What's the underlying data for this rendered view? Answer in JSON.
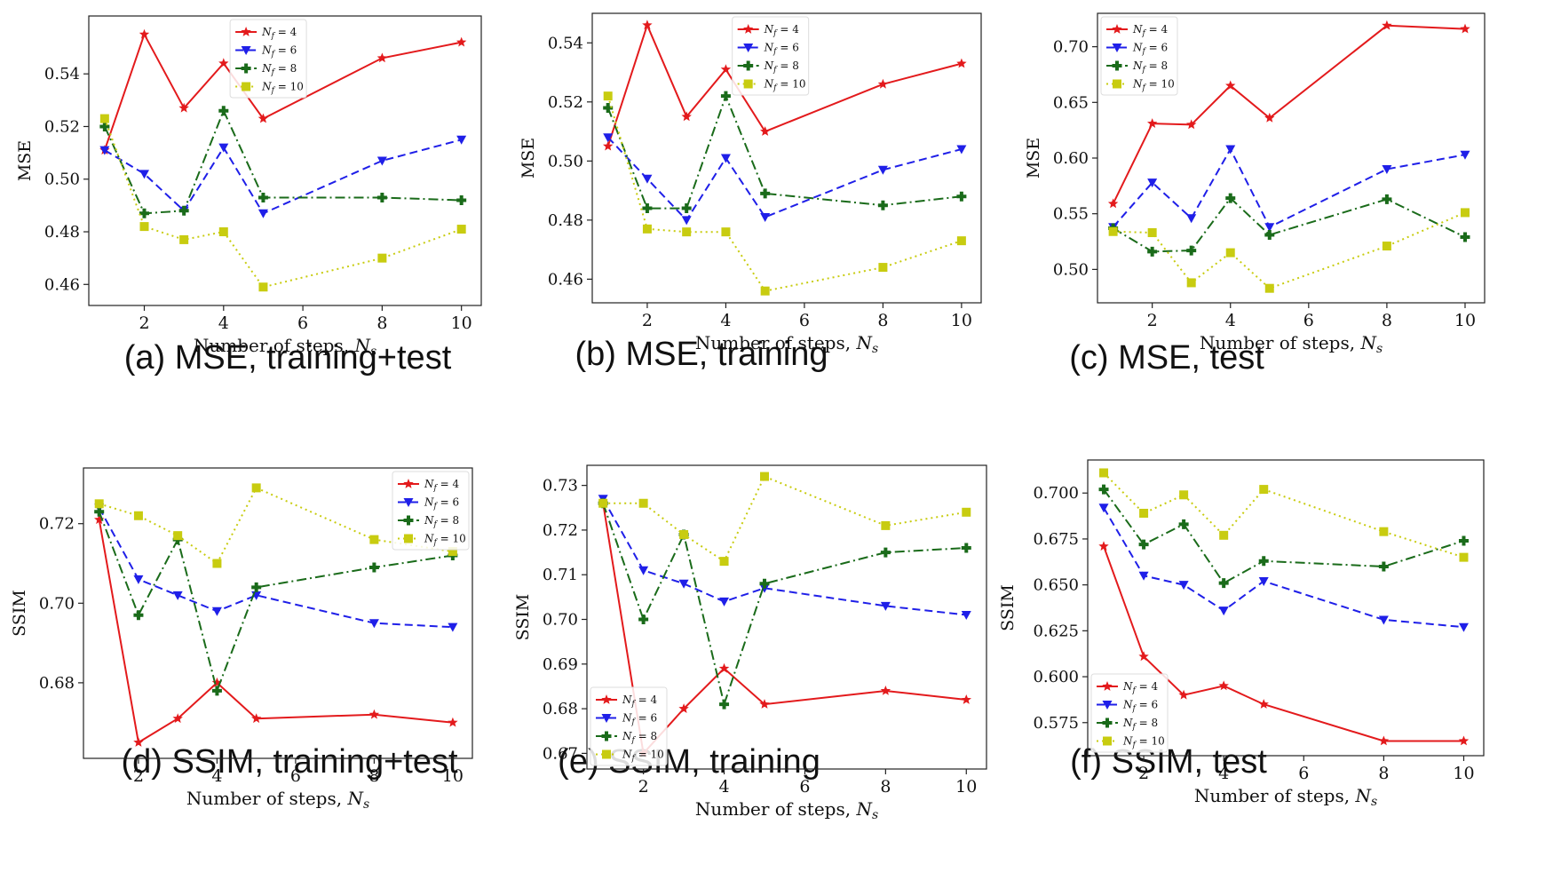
{
  "legend_labels": [
    "N_f = 4",
    "N_f = 6",
    "N_f = 8",
    "N_f = 10"
  ],
  "colors": {
    "nf4": "#e31a1c",
    "nf6": "#1f1fe8",
    "nf8": "#1a6b1a",
    "nf10": "#c8cc10"
  },
  "chart_data": [
    {
      "type": "line",
      "caption": "(a) MSE, training+test",
      "xlabel": "Number of steps, N_s",
      "ylabel": "MSE",
      "xlim": [
        0.6,
        10.5
      ],
      "ylim": [
        0.452,
        0.562
      ],
      "xticks": [
        2,
        4,
        6,
        8,
        10
      ],
      "yticks": [
        0.46,
        0.48,
        0.5,
        0.52,
        0.54
      ],
      "yfmt": 2,
      "legend": "top-center",
      "x": [
        1,
        2,
        3,
        4,
        5,
        8,
        10
      ],
      "series": [
        {
          "name": "N_f = 4",
          "values": [
            0.511,
            0.555,
            0.527,
            0.544,
            0.523,
            0.546,
            0.552
          ]
        },
        {
          "name": "N_f = 6",
          "values": [
            0.511,
            0.502,
            0.488,
            0.512,
            0.487,
            0.507,
            0.515
          ]
        },
        {
          "name": "N_f = 8",
          "values": [
            0.52,
            0.487,
            0.488,
            0.526,
            0.493,
            0.493,
            0.492
          ]
        },
        {
          "name": "N_f = 10",
          "values": [
            0.523,
            0.482,
            0.477,
            0.48,
            0.459,
            0.47,
            0.481
          ]
        }
      ]
    },
    {
      "type": "line",
      "caption": "(b) MSE, training",
      "xlabel": "Number of steps, N_s",
      "ylabel": "MSE",
      "xlim": [
        0.6,
        10.5
      ],
      "ylim": [
        0.452,
        0.55
      ],
      "xticks": [
        2,
        4,
        6,
        8,
        10
      ],
      "yticks": [
        0.46,
        0.48,
        0.5,
        0.52,
        0.54
      ],
      "yfmt": 2,
      "legend": "top-center",
      "x": [
        1,
        2,
        3,
        4,
        5,
        8,
        10
      ],
      "series": [
        {
          "name": "N_f = 4",
          "values": [
            0.505,
            0.546,
            0.515,
            0.531,
            0.51,
            0.526,
            0.533
          ]
        },
        {
          "name": "N_f = 6",
          "values": [
            0.508,
            0.494,
            0.48,
            0.501,
            0.481,
            0.497,
            0.504
          ]
        },
        {
          "name": "N_f = 8",
          "values": [
            0.518,
            0.484,
            0.484,
            0.522,
            0.489,
            0.485,
            0.488
          ]
        },
        {
          "name": "N_f = 10",
          "values": [
            0.522,
            0.477,
            0.476,
            0.476,
            0.456,
            0.464,
            0.473
          ]
        }
      ]
    },
    {
      "type": "line",
      "caption": "(c) MSE, test",
      "xlabel": "Number of steps, N_s",
      "ylabel": "MSE",
      "xlim": [
        0.6,
        10.5
      ],
      "ylim": [
        0.47,
        0.73
      ],
      "xticks": [
        2,
        4,
        6,
        8,
        10
      ],
      "yticks": [
        0.5,
        0.55,
        0.6,
        0.65,
        0.7
      ],
      "yfmt": 2,
      "legend": "top-left",
      "x": [
        1,
        2,
        3,
        4,
        5,
        8,
        10
      ],
      "series": [
        {
          "name": "N_f = 4",
          "values": [
            0.559,
            0.631,
            0.63,
            0.665,
            0.636,
            0.719,
            0.716
          ]
        },
        {
          "name": "N_f = 6",
          "values": [
            0.538,
            0.578,
            0.546,
            0.608,
            0.538,
            0.59,
            0.603
          ]
        },
        {
          "name": "N_f = 8",
          "values": [
            0.537,
            0.516,
            0.517,
            0.564,
            0.531,
            0.563,
            0.529
          ]
        },
        {
          "name": "N_f = 10",
          "values": [
            0.534,
            0.533,
            0.488,
            0.515,
            0.483,
            0.521,
            0.551
          ]
        }
      ]
    },
    {
      "type": "line",
      "caption": "(d) SSIM, training+test",
      "xlabel": "Number of steps, N_s",
      "ylabel": "SSIM",
      "xlim": [
        0.6,
        10.5
      ],
      "ylim": [
        0.661,
        0.734
      ],
      "xticks": [
        2,
        4,
        6,
        8,
        10
      ],
      "yticks": [
        0.68,
        0.7,
        0.72
      ],
      "yfmt": 2,
      "legend": "top-right",
      "x": [
        1,
        2,
        3,
        4,
        5,
        8,
        10
      ],
      "series": [
        {
          "name": "N_f = 4",
          "values": [
            0.721,
            0.665,
            0.671,
            0.68,
            0.671,
            0.672,
            0.67
          ]
        },
        {
          "name": "N_f = 6",
          "values": [
            0.724,
            0.706,
            0.702,
            0.698,
            0.702,
            0.695,
            0.694
          ]
        },
        {
          "name": "N_f = 8",
          "values": [
            0.723,
            0.697,
            0.716,
            0.678,
            0.704,
            0.709,
            0.712
          ]
        },
        {
          "name": "N_f = 10",
          "values": [
            0.725,
            0.722,
            0.717,
            0.71,
            0.729,
            0.716,
            0.713
          ]
        }
      ]
    },
    {
      "type": "line",
      "caption": "(e) SSIM, training",
      "xlabel": "Number of steps, N_s",
      "ylabel": "SSIM",
      "xlim": [
        0.6,
        10.5
      ],
      "ylim": [
        0.6665,
        0.7345
      ],
      "xticks": [
        2,
        4,
        6,
        8,
        10
      ],
      "yticks": [
        0.67,
        0.68,
        0.69,
        0.7,
        0.71,
        0.72,
        0.73
      ],
      "yfmt": 2,
      "legend": "bottom-left",
      "x": [
        1,
        2,
        3,
        4,
        5,
        8,
        10
      ],
      "series": [
        {
          "name": "N_f = 4",
          "values": [
            0.726,
            0.67,
            0.68,
            0.689,
            0.681,
            0.684,
            0.682
          ]
        },
        {
          "name": "N_f = 6",
          "values": [
            0.727,
            0.711,
            0.708,
            0.704,
            0.707,
            0.703,
            0.701
          ]
        },
        {
          "name": "N_f = 8",
          "values": [
            0.726,
            0.7,
            0.719,
            0.681,
            0.708,
            0.715,
            0.716
          ]
        },
        {
          "name": "N_f = 10",
          "values": [
            0.726,
            0.726,
            0.719,
            0.713,
            0.732,
            0.721,
            0.724
          ]
        }
      ]
    },
    {
      "type": "line",
      "caption": "(f) SSIM, test",
      "xlabel": "Number of steps, N_s",
      "ylabel": "SSIM",
      "xlim": [
        0.6,
        10.5
      ],
      "ylim": [
        0.557,
        0.718
      ],
      "xticks": [
        2,
        4,
        6,
        8,
        10
      ],
      "yticks": [
        0.575,
        0.6,
        0.625,
        0.65,
        0.675,
        0.7
      ],
      "yfmt": 3,
      "legend": "bottom-left",
      "x": [
        1,
        2,
        3,
        4,
        5,
        8,
        10
      ],
      "series": [
        {
          "name": "N_f = 4",
          "values": [
            0.671,
            0.611,
            0.59,
            0.595,
            0.585,
            0.565,
            0.565
          ]
        },
        {
          "name": "N_f = 6",
          "values": [
            0.692,
            0.655,
            0.65,
            0.636,
            0.652,
            0.631,
            0.627
          ]
        },
        {
          "name": "N_f = 8",
          "values": [
            0.702,
            0.672,
            0.683,
            0.651,
            0.663,
            0.66,
            0.674
          ]
        },
        {
          "name": "N_f = 10",
          "values": [
            0.711,
            0.689,
            0.699,
            0.677,
            0.702,
            0.679,
            0.665
          ]
        }
      ]
    }
  ]
}
